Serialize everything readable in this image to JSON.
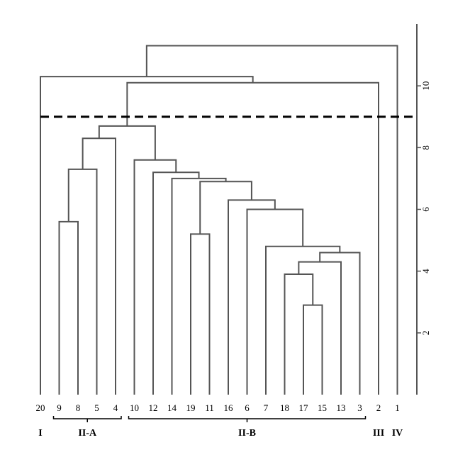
{
  "chart_data": {
    "type": "dendrogram",
    "color": "#555555",
    "ylim": [
      0,
      12
    ],
    "yticks": [
      2,
      4,
      6,
      8,
      10
    ],
    "cutoff": 9,
    "tree": {
      "height": 11.3,
      "children": [
        {
          "height": 10.3,
          "children": [
            {
              "label": "20"
            },
            {
              "height": 10.1,
              "children": [
                {
                  "height": 8.7,
                  "children": [
                    {
                      "height": 8.3,
                      "children": [
                        {
                          "height": 7.3,
                          "children": [
                            {
                              "height": 5.6,
                              "children": [
                                {
                                  "label": "9"
                                },
                                {
                                  "label": "8"
                                }
                              ]
                            },
                            {
                              "label": "5"
                            }
                          ]
                        },
                        {
                          "label": "4"
                        }
                      ]
                    },
                    {
                      "height": 7.6,
                      "children": [
                        {
                          "label": "10"
                        },
                        {
                          "height": 7.2,
                          "children": [
                            {
                              "label": "12"
                            },
                            {
                              "height": 7.0,
                              "children": [
                                {
                                  "label": "14"
                                },
                                {
                                  "height": 6.9,
                                  "children": [
                                    {
                                      "height": 5.2,
                                      "children": [
                                        {
                                          "label": "19"
                                        },
                                        {
                                          "label": "11"
                                        }
                                      ]
                                    },
                                    {
                                      "height": 6.3,
                                      "children": [
                                        {
                                          "label": "16"
                                        },
                                        {
                                          "height": 6.0,
                                          "children": [
                                            {
                                              "label": "6"
                                            },
                                            {
                                              "height": 4.8,
                                              "children": [
                                                {
                                                  "label": "7"
                                                },
                                                {
                                                  "height": 4.6,
                                                  "children": [
                                                    {
                                                      "height": 4.3,
                                                      "children": [
                                                        {
                                                          "height": 3.9,
                                                          "children": [
                                                            {
                                                              "label": "18"
                                                            },
                                                            {
                                                              "height": 2.9,
                                                              "children": [
                                                                {
                                                                  "label": "17"
                                                                },
                                                                {
                                                                  "label": "15"
                                                                }
                                                              ]
                                                            }
                                                          ]
                                                        },
                                                        {
                                                          "label": "13"
                                                        }
                                                      ]
                                                    },
                                                    {
                                                      "label": "3"
                                                    }
                                                  ]
                                                }
                                              ]
                                            }
                                          ]
                                        }
                                      ]
                                    }
                                  ]
                                }
                              ]
                            }
                          ]
                        }
                      ]
                    }
                  ]
                },
                {
                  "label": "2"
                }
              ]
            }
          ]
        },
        {
          "label": "1"
        }
      ]
    },
    "groups": [
      {
        "label": "I",
        "size": 1
      },
      {
        "label": "II-A",
        "size": 4
      },
      {
        "label": "II-B",
        "size": 13
      },
      {
        "label": "III",
        "size": 1
      },
      {
        "label": "IV",
        "size": 1
      }
    ]
  }
}
